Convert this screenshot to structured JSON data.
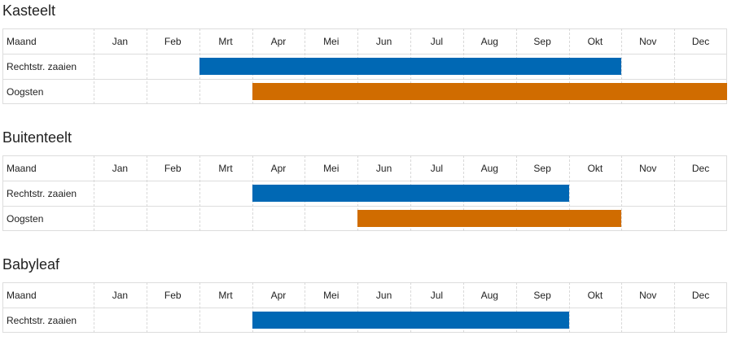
{
  "sections": [
    {
      "title": "Kasteelt",
      "header": "Maand",
      "months": [
        "Jan",
        "Feb",
        "Mrt",
        "Apr",
        "Mei",
        "Jun",
        "Jul",
        "Aug",
        "Sep",
        "Okt",
        "Nov",
        "Dec"
      ],
      "rows": [
        {
          "label": "Rechtstr. zaaien",
          "from": 3,
          "to": 10,
          "color": "#0068b4"
        },
        {
          "label": "Oogsten",
          "from": 4,
          "to": 12,
          "color": "#d06c00"
        }
      ]
    },
    {
      "title": "Buitenteelt",
      "header": "Maand",
      "months": [
        "Jan",
        "Feb",
        "Mrt",
        "Apr",
        "Mei",
        "Jun",
        "Jul",
        "Aug",
        "Sep",
        "Okt",
        "Nov",
        "Dec"
      ],
      "rows": [
        {
          "label": "Rechtstr. zaaien",
          "from": 4,
          "to": 9,
          "color": "#0068b4"
        },
        {
          "label": "Oogsten",
          "from": 6,
          "to": 10,
          "color": "#d06c00"
        }
      ]
    },
    {
      "title": "Babyleaf",
      "header": "Maand",
      "months": [
        "Jan",
        "Feb",
        "Mrt",
        "Apr",
        "Mei",
        "Jun",
        "Jul",
        "Aug",
        "Sep",
        "Okt",
        "Nov",
        "Dec"
      ],
      "rows": [
        {
          "label": "Rechtstr. zaaien",
          "from": 4,
          "to": 9,
          "color": "#0068b4"
        }
      ]
    }
  ]
}
